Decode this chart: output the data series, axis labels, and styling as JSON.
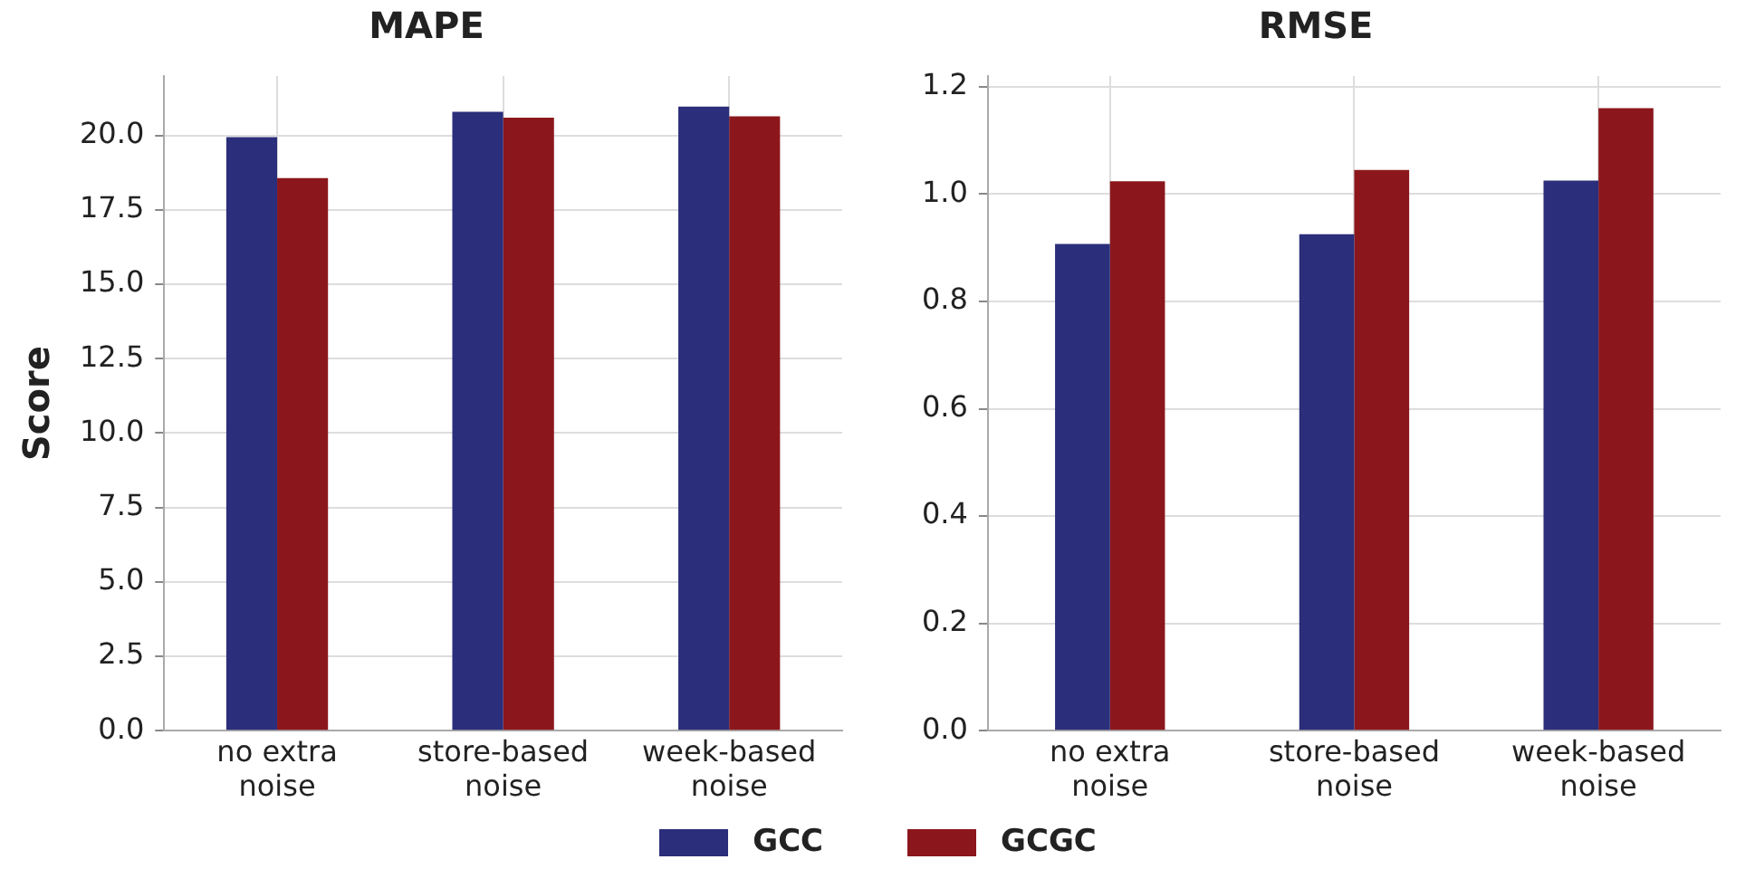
{
  "chart_data": [
    {
      "type": "bar",
      "title": "MAPE",
      "ylabel": "Score",
      "categories": [
        "no extra noise",
        "store-based noise",
        "week-based noise"
      ],
      "series": [
        {
          "name": "GCC",
          "color": "#2b2e7a",
          "values": [
            19.95,
            20.8,
            20.97
          ]
        },
        {
          "name": "GCGC",
          "color": "#8b171c",
          "values": [
            18.57,
            20.6,
            20.65
          ]
        }
      ],
      "ylim": [
        0,
        22
      ],
      "yticks": [
        {
          "value": 0,
          "label": "0.0"
        },
        2.5,
        {
          "value": 5,
          "label": "5.0"
        },
        7.5,
        {
          "value": 10,
          "label": "10.0"
        },
        12.5,
        {
          "value": 15,
          "label": "15.0"
        },
        17.5,
        {
          "value": 20,
          "label": "20.0"
        }
      ],
      "grid": true,
      "legend": "bottom"
    },
    {
      "type": "bar",
      "title": "RMSE",
      "categories": [
        "no extra noise",
        "store-based noise",
        "week-based noise"
      ],
      "series": [
        {
          "name": "GCC",
          "color": "#2b2e7a",
          "values": [
            0.907,
            0.925,
            1.025
          ]
        },
        {
          "name": "GCGC",
          "color": "#8b171c",
          "values": [
            1.024,
            1.045,
            1.16
          ]
        }
      ],
      "ylim": [
        0,
        1.22
      ],
      "yticks": [
        {
          "value": 0,
          "label": "0.0"
        },
        0.2,
        0.4,
        0.6,
        0.8,
        {
          "value": 1,
          "label": "1.0"
        },
        1.2
      ],
      "grid": true,
      "legend": "bottom"
    }
  ]
}
